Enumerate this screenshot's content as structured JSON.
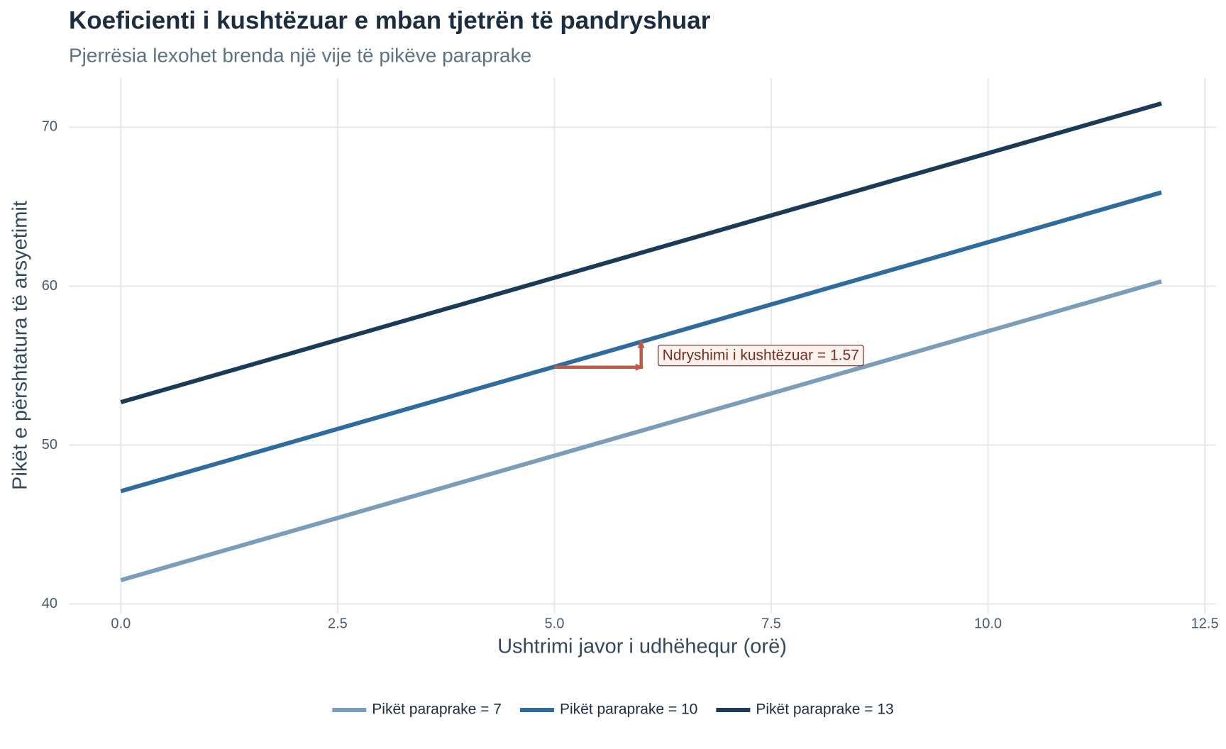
{
  "chart_data": {
    "type": "line",
    "title": "Koeficienti i kushtëzuar e mban tjetrën të pandryshuar",
    "subtitle": "Pjerrësia lexohet brenda një vije të pikëve paraprake",
    "x_label": "Ushtrimi javor i udhëhequr (orë)",
    "y_label": "Pikët e përshtatura të arsyetimit",
    "x": [
      0,
      12
    ],
    "series": [
      {
        "name": "Pikët paraprake = 7",
        "color": "#7b9db7",
        "values": [
          41.5,
          60.3
        ]
      },
      {
        "name": "Pikët paraprake = 10",
        "color": "#2f6c9d",
        "values": [
          47.1,
          65.9
        ]
      },
      {
        "name": "Pikët paraprake = 13",
        "color": "#1b3a55",
        "values": [
          52.7,
          71.5
        ]
      }
    ],
    "xlim": [
      -0.6,
      12.63
    ],
    "ylim": [
      39.4,
      73.1
    ],
    "xticks": [
      {
        "value": 0,
        "label": "0.0"
      },
      2.5,
      {
        "value": 5,
        "label": "5.0"
      },
      7.5,
      {
        "value": 10,
        "label": "10.0"
      },
      12.5
    ],
    "yticks": [
      40,
      50,
      60,
      70
    ],
    "grid": true,
    "legend": "bottom",
    "annotation": {
      "text": "Ndryshimi i kushtëzuar = 1.57",
      "color": "#c0594a",
      "x": [
        5,
        6,
        6
      ],
      "y": [
        54.9,
        54.9,
        56.47
      ]
    }
  }
}
